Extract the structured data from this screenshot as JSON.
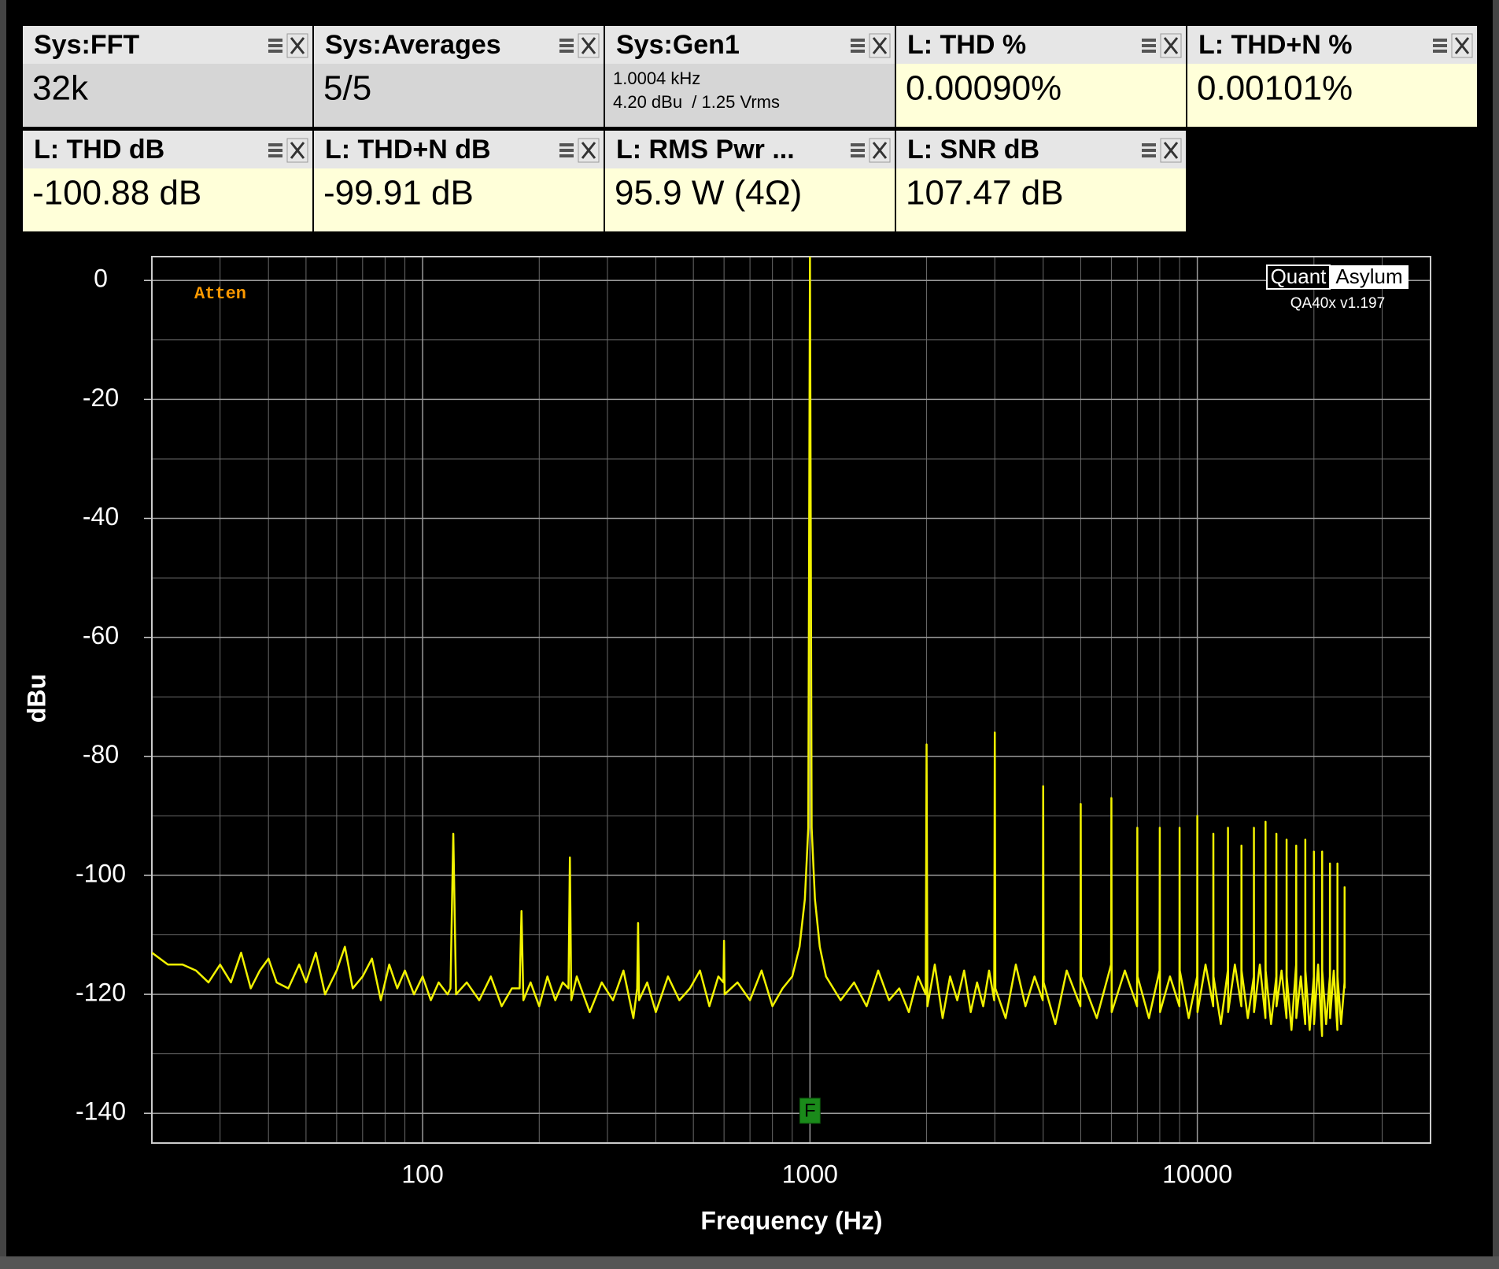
{
  "widgets": [
    {
      "title": "Sys:FFT",
      "value": "32k"
    },
    {
      "title": "Sys:Averages",
      "value": "5/5"
    },
    {
      "title": "Sys:Gen1",
      "lines": [
        "1.0004 kHz",
        "4.20 dBu  / 1.25 Vrms"
      ]
    },
    {
      "title": "L: THD %",
      "value": "0.00090%"
    },
    {
      "title": "L: THD+N %",
      "value": "0.00101%"
    },
    {
      "title": "L: THD dB",
      "value": "-100.88 dB"
    },
    {
      "title": "L: THD+N dB",
      "value": "-99.91 dB"
    },
    {
      "title": "L: RMS Pwr ...",
      "value": "95.9 W (4Ω)"
    },
    {
      "title": "L: SNR dB",
      "value": "107.47 dB"
    }
  ],
  "logo": {
    "left": "Quant",
    "right": "Asylum",
    "version": "QA40x v1.197"
  },
  "atten": "Atten",
  "marker": "F",
  "chart_data": {
    "type": "line",
    "xlabel": "Frequency (Hz)",
    "ylabel": "dBu",
    "xscale": "log",
    "grid": true,
    "xlim": [
      20,
      40000
    ],
    "ylim": [
      -145,
      4
    ],
    "xticks": [
      100,
      1000,
      10000
    ],
    "xminor": [
      20,
      30,
      40,
      50,
      60,
      70,
      80,
      90,
      200,
      300,
      400,
      500,
      600,
      700,
      800,
      900,
      2000,
      3000,
      4000,
      5000,
      6000,
      7000,
      8000,
      9000,
      20000,
      30000,
      40000
    ],
    "yticks": [
      0,
      -20,
      -40,
      -60,
      -80,
      -100,
      -120,
      -140
    ],
    "yminor": [
      -10,
      -30,
      -50,
      -70,
      -90,
      -110,
      -130
    ],
    "marker_x": 1000,
    "series": [
      {
        "color": "#f2f200",
        "x": [
          20,
          22,
          24,
          26,
          28,
          30,
          32,
          34,
          36,
          38,
          40,
          42,
          45,
          48,
          50,
          53,
          56,
          60,
          63,
          66,
          70,
          74,
          78,
          82,
          86,
          90,
          95,
          100,
          105,
          110,
          116,
          118,
          120,
          122,
          130,
          140,
          150,
          160,
          170,
          178,
          180,
          182,
          190,
          200,
          210,
          220,
          230,
          238,
          240,
          242,
          250,
          270,
          290,
          310,
          330,
          350,
          358,
          360,
          362,
          380,
          400,
          430,
          460,
          490,
          520,
          550,
          580,
          598,
          600,
          602,
          650,
          700,
          750,
          800,
          850,
          900,
          940,
          970,
          990,
          1000,
          1010,
          1030,
          1060,
          1100,
          1200,
          1300,
          1400,
          1500,
          1600,
          1700,
          1800,
          1900,
          1990,
          2000,
          2010,
          2100,
          2200,
          2300,
          2400,
          2500,
          2600,
          2700,
          2800,
          2900,
          2990,
          3000,
          3010,
          3200,
          3400,
          3600,
          3800,
          3990,
          4000,
          4010,
          4300,
          4600,
          4990,
          5000,
          5010,
          5500,
          5990,
          6000,
          6010,
          6500,
          6990,
          7000,
          7010,
          7500,
          7990,
          8000,
          8010,
          8500,
          8990,
          9000,
          9010,
          9500,
          9990,
          10000,
          10010,
          10500,
          10990,
          11000,
          11010,
          11500,
          11990,
          12000,
          12010,
          12500,
          12990,
          13000,
          13010,
          13500,
          13990,
          14000,
          14010,
          14500,
          14990,
          15000,
          15010,
          15500,
          15990,
          16000,
          16010,
          16500,
          16990,
          17000,
          17010,
          17500,
          17990,
          18000,
          18010,
          18500,
          18990,
          19000,
          19010,
          19500,
          19990,
          20000,
          20010,
          20500,
          20990,
          21000,
          21010,
          21500,
          21990,
          22000,
          22010,
          22500,
          22990,
          23000,
          23010,
          23500,
          23990,
          24000,
          24010
        ],
        "values": [
          -113,
          -115,
          -115,
          -116,
          -118,
          -115,
          -118,
          -113,
          -119,
          -116,
          -114,
          -118,
          -119,
          -115,
          -118,
          -113,
          -120,
          -116,
          -112,
          -119,
          -117,
          -114,
          -121,
          -115,
          -119,
          -116,
          -120,
          -117,
          -121,
          -118,
          -120,
          -119,
          -93,
          -120,
          -118,
          -121,
          -117,
          -122,
          -119,
          -119,
          -106,
          -121,
          -118,
          -122,
          -117,
          -121,
          -118,
          -119,
          -97,
          -121,
          -117,
          -123,
          -118,
          -121,
          -116,
          -124,
          -119,
          -108,
          -121,
          -118,
          -123,
          -117,
          -121,
          -119,
          -116,
          -122,
          -117,
          -118,
          -111,
          -120,
          -118,
          -121,
          -116,
          -122,
          -119,
          -117,
          -112,
          -104,
          -92,
          4,
          -92,
          -104,
          -112,
          -117,
          -121,
          -118,
          -122,
          -116,
          -121,
          -119,
          -123,
          -117,
          -120,
          -78,
          -122,
          -115,
          -124,
          -117,
          -121,
          -116,
          -123,
          -118,
          -122,
          -116,
          -121,
          -76,
          -119,
          -124,
          -115,
          -122,
          -117,
          -121,
          -85,
          -118,
          -125,
          -116,
          -122,
          -88,
          -117,
          -124,
          -115,
          -87,
          -123,
          -116,
          -122,
          -92,
          -117,
          -124,
          -116,
          -92,
          -123,
          -117,
          -122,
          -92,
          -116,
          -124,
          -117,
          -90,
          -123,
          -115,
          -122,
          -93,
          -117,
          -125,
          -116,
          -92,
          -123,
          -115,
          -122,
          -95,
          -116,
          -124,
          -117,
          -92,
          -123,
          -115,
          -124,
          -91,
          -116,
          -125,
          -117,
          -93,
          -122,
          -116,
          -124,
          -94,
          -117,
          -126,
          -115,
          -95,
          -124,
          -117,
          -125,
          -94,
          -116,
          -126,
          -117,
          -96,
          -125,
          -115,
          -127,
          -96,
          -116,
          -125,
          -117,
          -98,
          -124,
          -116,
          -126,
          -98,
          -117,
          -125,
          -118,
          -102,
          -119
        ]
      }
    ]
  }
}
